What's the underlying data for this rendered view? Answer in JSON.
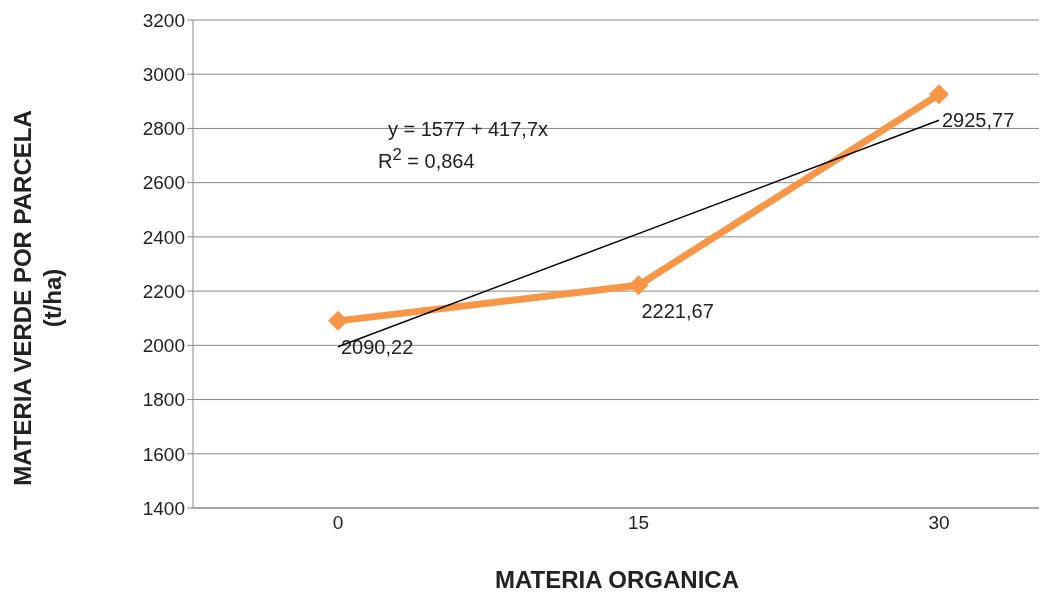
{
  "chart_data": {
    "type": "line",
    "xlabel": "MATERIA ORGANICA",
    "ylabel": "MATERIA VERDE POR PARCELA\n(t/ha)",
    "categories": [
      "0",
      "15",
      "30"
    ],
    "series": [
      {
        "name": null,
        "color": "#f79646",
        "values": [
          2090.22,
          2221.67,
          2925.77
        ],
        "value_labels": [
          "2090,22",
          "2221,67",
          "2925,77"
        ],
        "marker": "diamond"
      },
      {
        "type": "line",
        "color": "#000000",
        "x": [
          "0",
          "15",
          "30"
        ],
        "values": [
          1995,
          2412,
          2830
        ],
        "marker": "none"
      }
    ],
    "ylim": [
      1400,
      3200
    ],
    "yticks": [
      1400,
      1600,
      1800,
      2000,
      2200,
      2400,
      2600,
      2800,
      3000,
      3200
    ],
    "grid": "y",
    "annotations": [
      "y = 1577 +  417,7x",
      "R$^{2}$ = 0,864"
    ]
  }
}
